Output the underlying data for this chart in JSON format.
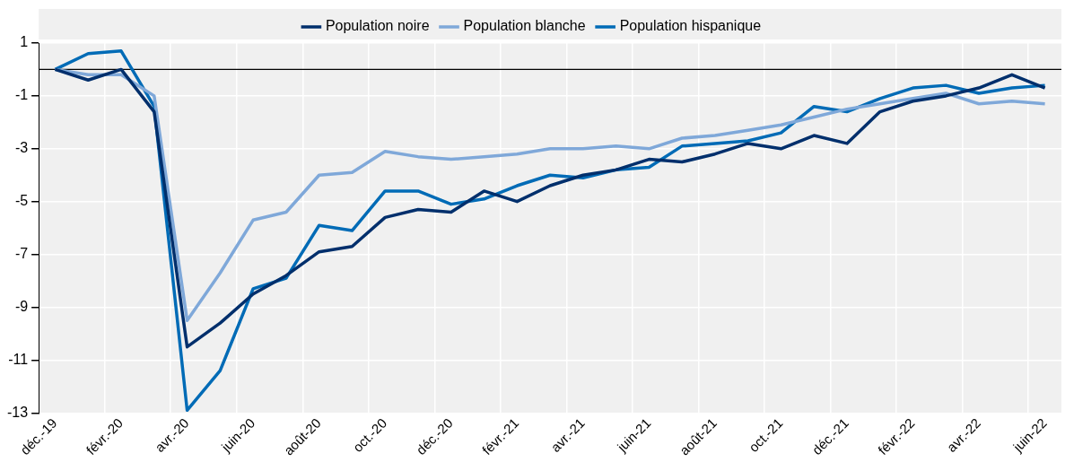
{
  "chart_data": {
    "type": "line",
    "categories": [
      "déc.-19",
      null,
      "févr.-20",
      null,
      "avr.-20",
      null,
      "juin-20",
      null,
      "août-20",
      null,
      "oct.-20",
      null,
      "déc.-20",
      null,
      "févr.-21",
      null,
      "avr.-21",
      null,
      "juin-21",
      null,
      "août-21",
      null,
      "oct.-21",
      null,
      "déc.-21",
      null,
      "févr.-22",
      null,
      "avr.-22",
      null,
      "juin-22"
    ],
    "series": [
      {
        "name": "Population noire",
        "color": "#002f6c",
        "values": [
          0,
          -0.4,
          0,
          -1.6,
          -10.5,
          -9.6,
          -8.5,
          -7.8,
          -6.9,
          -6.7,
          -5.6,
          -5.3,
          -5.4,
          -4.6,
          -5.0,
          -4.4,
          -4.0,
          -3.8,
          -3.4,
          -3.5,
          -3.2,
          -2.8,
          -3.0,
          -2.5,
          -2.8,
          -1.6,
          -1.2,
          -1.0,
          -0.7,
          -0.2,
          -0.7
        ]
      },
      {
        "name": "Population blanche",
        "color": "#7fa8d9",
        "values": [
          0,
          -0.2,
          -0.2,
          -1.0,
          -9.5,
          -7.7,
          -5.7,
          -5.4,
          -4.0,
          -3.9,
          -3.1,
          -3.3,
          -3.4,
          -3.3,
          -3.2,
          -3.0,
          -3.0,
          -2.9,
          -3.0,
          -2.6,
          -2.5,
          -2.3,
          -2.1,
          -1.8,
          -1.5,
          -1.3,
          -1.1,
          -0.9,
          -1.3,
          -1.2,
          -1.3
        ]
      },
      {
        "name": "Population hispanique",
        "color": "#006bb6",
        "values": [
          0,
          0.6,
          0.7,
          -1.4,
          -12.9,
          -11.4,
          -8.3,
          -7.9,
          -5.9,
          -6.1,
          -4.6,
          -4.6,
          -5.1,
          -4.9,
          -4.4,
          -4.0,
          -4.1,
          -3.8,
          -3.7,
          -2.9,
          -2.8,
          -2.7,
          -2.4,
          -1.4,
          -1.6,
          -1.1,
          -0.7,
          -0.6,
          -0.9,
          -0.7,
          -0.6
        ]
      }
    ],
    "ylim": [
      -13,
      1
    ],
    "yticks": [
      1,
      -1,
      -3,
      -5,
      -7,
      -9,
      -11,
      -13
    ],
    "ref_lines": [
      {
        "axis": "y",
        "value": 0,
        "color": "#000000"
      }
    ],
    "grid": true,
    "legend": "top",
    "marker": "none",
    "line_style": "solid"
  }
}
